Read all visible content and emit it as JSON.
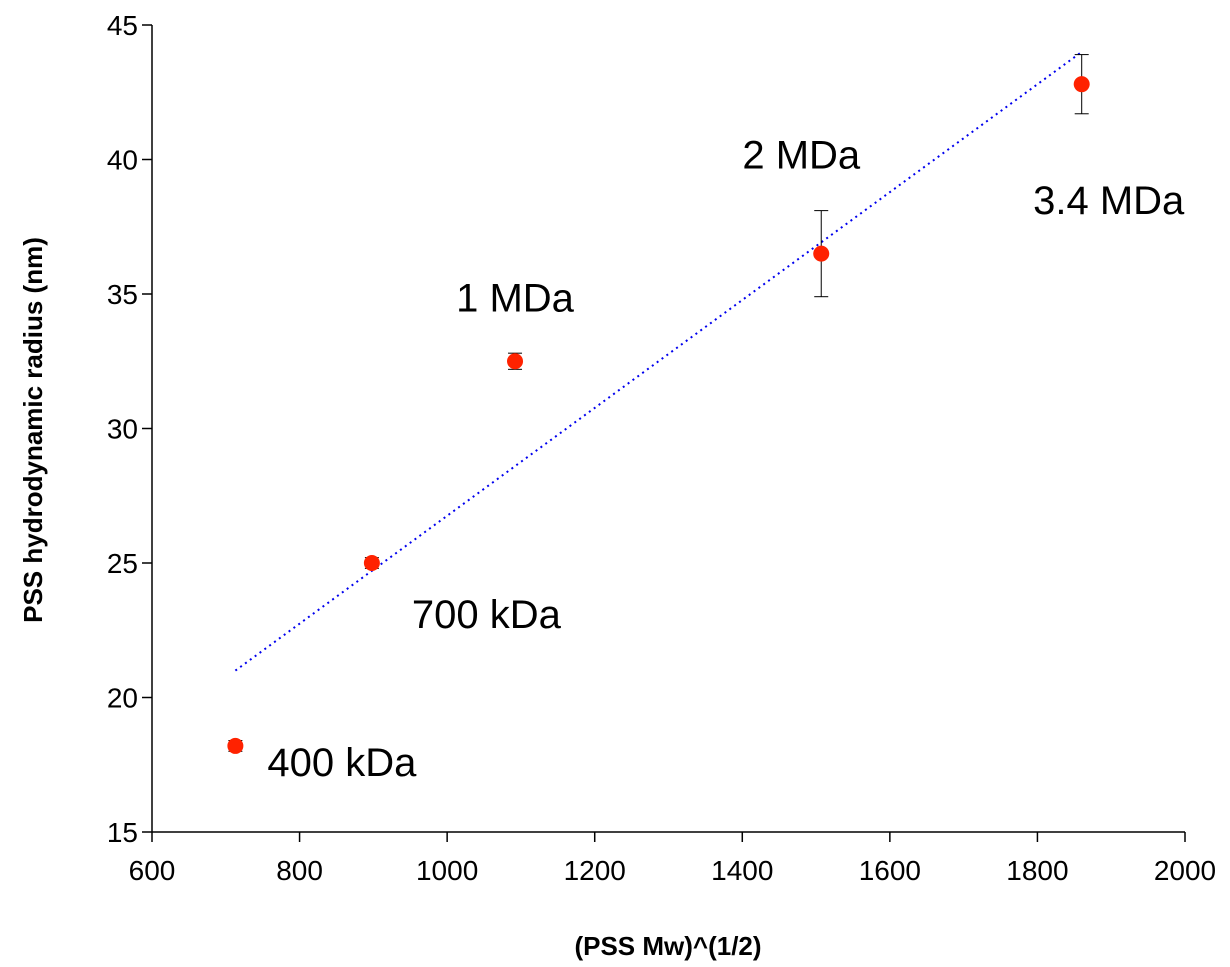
{
  "chart_data": {
    "type": "scatter",
    "title": "",
    "xlabel": "(PSS Mw)^(1/2)",
    "ylabel": "PSS hydrodynamic radius  (nm)",
    "xlim": [
      600,
      2000
    ],
    "ylim": [
      15,
      45
    ],
    "xticks": [
      600,
      800,
      1000,
      1200,
      1400,
      1600,
      1800,
      2000
    ],
    "yticks": [
      15,
      20,
      25,
      30,
      35,
      40,
      45
    ],
    "grid": false,
    "series": [
      {
        "color": "#ff2200",
        "points": [
          {
            "x": 713,
            "y": 18.2,
            "err": 0.2,
            "label": "400 kDa"
          },
          {
            "x": 898,
            "y": 25.0,
            "err": 0.2,
            "label": "700 kDa"
          },
          {
            "x": 1092,
            "y": 32.5,
            "err": 0.3,
            "label": "1 MDa"
          },
          {
            "x": 1507,
            "y": 36.5,
            "err": 1.6,
            "label": "2 MDa"
          },
          {
            "x": 1860,
            "y": 42.8,
            "err": 1.1,
            "label": "3.4 MDa"
          }
        ]
      }
    ],
    "trendline": {
      "style": "dotted",
      "color": "#0000ee",
      "x": [
        713,
        1860
      ],
      "y": [
        21.0,
        44.0
      ]
    }
  }
}
